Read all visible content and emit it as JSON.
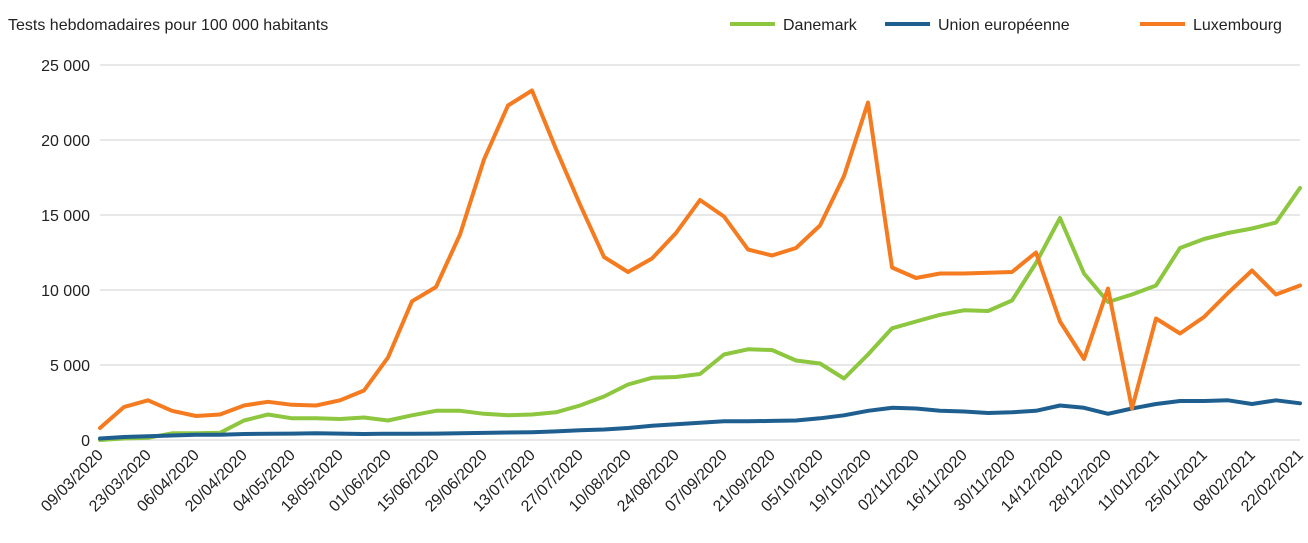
{
  "chart_data": {
    "type": "line",
    "title": "Tests hebdomadaires pour 100 000 habitants",
    "categories": [
      "09/03/2020",
      null,
      "23/03/2020",
      null,
      "06/04/2020",
      null,
      "20/04/2020",
      null,
      "04/05/2020",
      null,
      "18/05/2020",
      null,
      "01/06/2020",
      null,
      "15/06/2020",
      null,
      "29/06/2020",
      null,
      "13/07/2020",
      null,
      "27/07/2020",
      null,
      "10/08/2020",
      null,
      "24/08/2020",
      null,
      "07/09/2020",
      null,
      "21/09/2020",
      null,
      "05/10/2020",
      null,
      "19/10/2020",
      null,
      "02/11/2020",
      null,
      "16/11/2020",
      null,
      "30/11/2020",
      null,
      "14/12/2020",
      null,
      "28/12/2020",
      null,
      "11/01/2021",
      null,
      "25/01/2021",
      null,
      "08/02/2021",
      null,
      "22/02/2021"
    ],
    "series": [
      {
        "name": "Danemark",
        "color": "#8dc63f",
        "values": [
          0,
          100,
          150,
          450,
          450,
          480,
          1300,
          1700,
          1450,
          1450,
          1400,
          1500,
          1300,
          1650,
          1950,
          1950,
          1750,
          1650,
          1700,
          1850,
          2300,
          2900,
          3700,
          4150,
          4200,
          4400,
          5700,
          6050,
          6000,
          5300,
          5100,
          4100,
          5700,
          7450,
          7900,
          8350,
          8650,
          8600,
          9300,
          11800,
          14800,
          11100,
          9200,
          9700,
          10300,
          12800,
          13400,
          13800,
          14100,
          14500,
          16800
        ]
      },
      {
        "name": "Union européenne",
        "color": "#1f5f8f",
        "values": [
          100,
          200,
          250,
          300,
          350,
          350,
          400,
          420,
          430,
          450,
          430,
          400,
          420,
          420,
          430,
          450,
          470,
          500,
          520,
          570,
          650,
          700,
          800,
          950,
          1050,
          1150,
          1250,
          1250,
          1270,
          1300,
          1450,
          1650,
          1950,
          2150,
          2100,
          1950,
          1900,
          1800,
          1850,
          1950,
          2300,
          2150,
          1750,
          2100,
          2400,
          2600,
          2600,
          2650,
          2400,
          2650,
          2450
        ]
      },
      {
        "name": "Luxembourg",
        "color": "#f47b20",
        "values": [
          800,
          2200,
          2650,
          1950,
          1600,
          1700,
          2300,
          2550,
          2350,
          2300,
          2650,
          3300,
          5500,
          9250,
          10200,
          13700,
          18700,
          22300,
          23300,
          19400,
          15700,
          12200,
          11200,
          12100,
          13800,
          16000,
          14900,
          12700,
          12300,
          12800,
          14300,
          17600,
          22500,
          11500,
          10800,
          11100,
          11100,
          11150,
          11200,
          12500,
          7900,
          5400,
          10100,
          2100,
          8100,
          7100,
          8200,
          9800,
          11300,
          9700,
          10300
        ]
      }
    ],
    "ylim": [
      0,
      25000
    ],
    "yticks": [
      0,
      {
        "value": 5000,
        "label": "5 000"
      },
      {
        "value": 10000,
        "label": "10 000"
      },
      {
        "value": 15000,
        "label": "15 000"
      },
      {
        "value": 20000,
        "label": "20 000"
      },
      {
        "value": 25000,
        "label": "25 000"
      }
    ],
    "grid": true,
    "legend": "top-right"
  }
}
